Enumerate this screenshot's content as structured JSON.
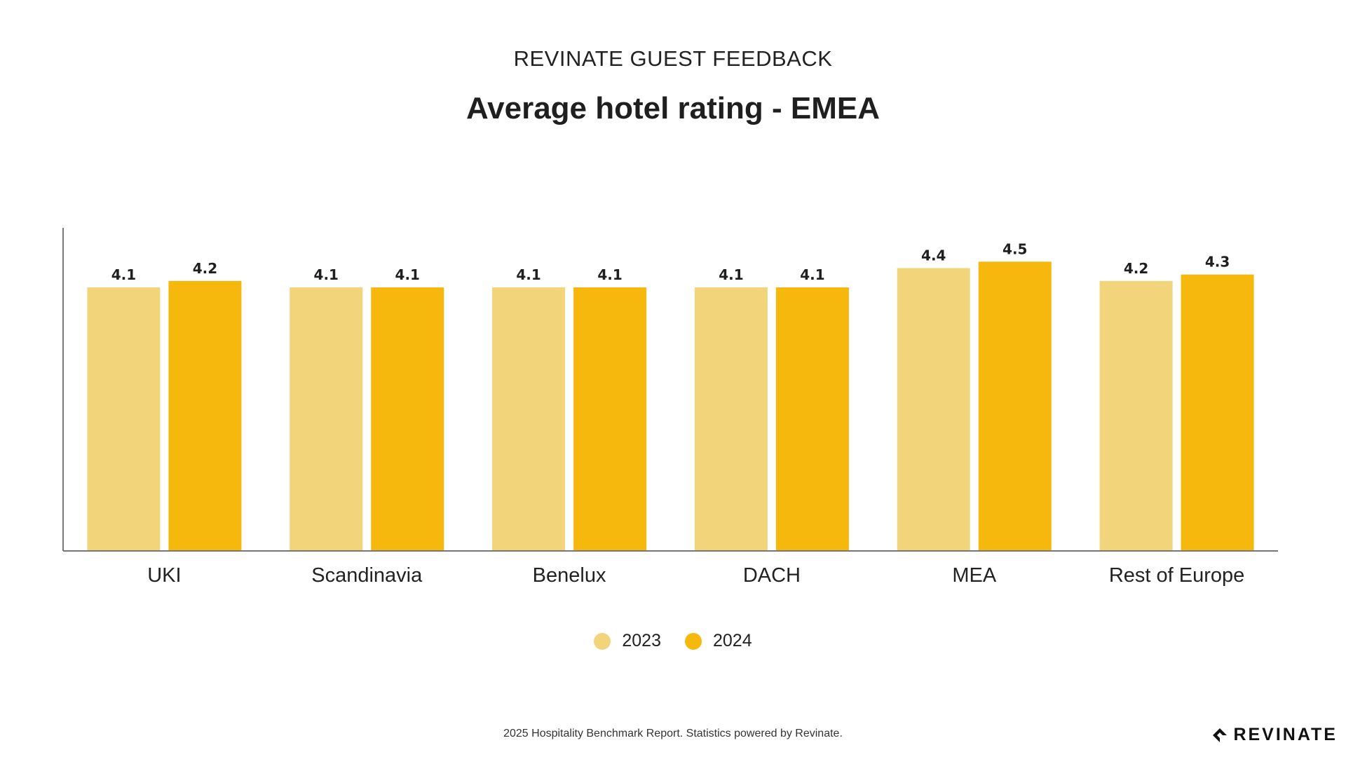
{
  "kicker": "REVINATE GUEST FEEDBACK",
  "title": "Average hotel rating - EMEA",
  "footer": "2025 Hospitality Benchmark Report. Statistics powered by Revinate.",
  "brand": "REVINATE",
  "colors": {
    "s2023": "#f2d57a",
    "s2024": "#f6b80d",
    "axis": "#777777",
    "text": "#1f1f1f"
  },
  "chart_data": {
    "type": "bar",
    "title": "Average hotel rating - EMEA",
    "categories": [
      "UKI",
      "Scandinavia",
      "Benelux",
      "DACH",
      "MEA",
      "Rest of Europe"
    ],
    "series": [
      {
        "name": "2023",
        "values": [
          4.1,
          4.1,
          4.1,
          4.1,
          4.4,
          4.2
        ]
      },
      {
        "name": "2024",
        "values": [
          4.2,
          4.1,
          4.1,
          4.1,
          4.5,
          4.3
        ]
      }
    ],
    "ylim": [
      0,
      5
    ],
    "grid": false,
    "legend_position": "bottom"
  }
}
